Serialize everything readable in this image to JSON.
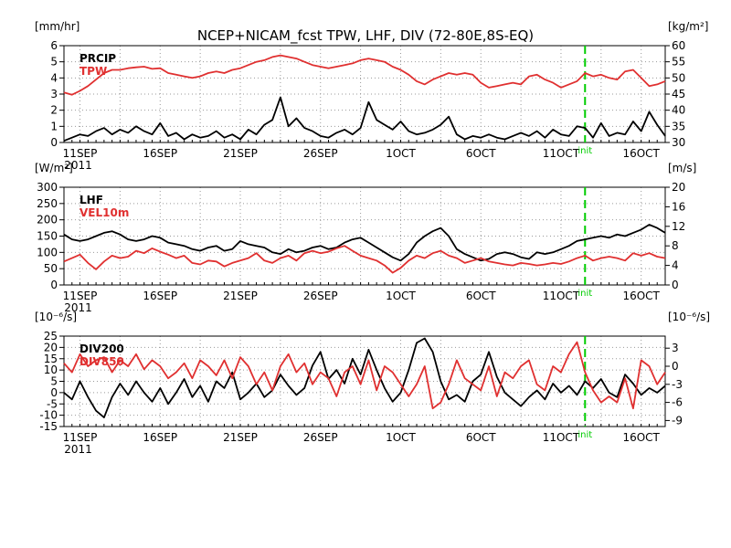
{
  "title": "NCEP+NICAM_fcst TPW, LHF, DIV (72-80E,8S-EQ)",
  "init_label": "init",
  "year_label": "2011",
  "date_labels": [
    "11SEP",
    "16SEP",
    "21SEP",
    "26SEP",
    "1OCT",
    "6OCT",
    "11OCT",
    "16OCT"
  ],
  "colors": {
    "black_series": "#000000",
    "red_series": "#e03030",
    "init_line": "#00cc00",
    "grid": "#999999"
  },
  "chart_data": [
    {
      "type": "line",
      "name": "panel1",
      "left_unit": "[mm/hr]",
      "right_unit": "[kg/m²]",
      "left_ticks": [
        "0",
        "1",
        "2",
        "3",
        "4",
        "5",
        "6"
      ],
      "right_ticks": [
        "30",
        "35",
        "40",
        "45",
        "50",
        "55",
        "60"
      ],
      "ylim_left": [
        0,
        6
      ],
      "ylim_right": [
        30,
        60
      ],
      "grid": true,
      "series": [
        {
          "name": "PRCIP",
          "axis": "left",
          "color": "#000000",
          "x": [
            0,
            1,
            2,
            3,
            4,
            5,
            6,
            7,
            8,
            9,
            10,
            11,
            12,
            13,
            14,
            15,
            16,
            17,
            18,
            19,
            20,
            21,
            22,
            23,
            24,
            25,
            26,
            27,
            28,
            29,
            30,
            31,
            32,
            33,
            34,
            35,
            36,
            37,
            38,
            39,
            40,
            41,
            42,
            43,
            44,
            45,
            46,
            47,
            48,
            49,
            50,
            51,
            52,
            53,
            54,
            55,
            56,
            57,
            58,
            59,
            60,
            61,
            62,
            63,
            64,
            65,
            66,
            67,
            68,
            69,
            70,
            71,
            72,
            73,
            74,
            75
          ],
          "y": [
            0.1,
            0.3,
            0.5,
            0.4,
            0.7,
            0.9,
            0.5,
            0.8,
            0.6,
            1.0,
            0.7,
            0.5,
            1.2,
            0.4,
            0.6,
            0.2,
            0.5,
            0.3,
            0.4,
            0.7,
            0.3,
            0.5,
            0.2,
            0.8,
            0.5,
            1.1,
            1.4,
            2.8,
            1.0,
            1.5,
            0.9,
            0.7,
            0.4,
            0.3,
            0.6,
            0.8,
            0.5,
            0.9,
            2.5,
            1.4,
            1.1,
            0.8,
            1.3,
            0.7,
            0.5,
            0.6,
            0.8,
            1.1,
            1.6,
            0.5,
            0.2,
            0.4,
            0.3,
            0.5,
            0.3,
            0.2,
            0.4,
            0.6,
            0.4,
            0.7,
            0.3,
            0.8,
            0.5,
            0.4,
            1.0,
            0.9,
            0.3,
            1.2,
            0.4,
            0.6,
            0.5,
            1.3,
            0.7,
            1.9,
            1.1,
            0.4
          ]
        },
        {
          "name": "TPW",
          "axis": "right",
          "color": "#e03030",
          "x": [
            0,
            1,
            2,
            3,
            4,
            5,
            6,
            7,
            8,
            9,
            10,
            11,
            12,
            13,
            14,
            15,
            16,
            17,
            18,
            19,
            20,
            21,
            22,
            23,
            24,
            25,
            26,
            27,
            28,
            29,
            30,
            31,
            32,
            33,
            34,
            35,
            36,
            37,
            38,
            39,
            40,
            41,
            42,
            43,
            44,
            45,
            46,
            47,
            48,
            49,
            50,
            51,
            52,
            53,
            54,
            55,
            56,
            57,
            58,
            59,
            60,
            61,
            62,
            63,
            64,
            65,
            66,
            67,
            68,
            69,
            70,
            71,
            72,
            73,
            74,
            75
          ],
          "y": [
            45.5,
            44.8,
            46.0,
            47.5,
            49.5,
            51.5,
            52.5,
            52.5,
            53.0,
            53.3,
            53.5,
            52.8,
            53.0,
            51.5,
            51.0,
            50.5,
            50.0,
            50.5,
            51.5,
            52.0,
            51.5,
            52.5,
            53.0,
            54.0,
            55.0,
            55.5,
            56.5,
            57.0,
            56.5,
            56.0,
            55.0,
            54.0,
            53.5,
            53.0,
            53.5,
            54.0,
            54.5,
            55.5,
            56.0,
            55.5,
            55.0,
            53.5,
            52.5,
            51.0,
            49.0,
            48.0,
            49.5,
            50.5,
            51.5,
            51.0,
            51.5,
            51.0,
            48.5,
            47.0,
            47.5,
            48.0,
            48.5,
            48.0,
            50.5,
            51.0,
            49.5,
            48.5,
            47.0,
            48.0,
            49.0,
            51.5,
            50.5,
            51.0,
            50.0,
            49.5,
            52.0,
            52.5,
            50.0,
            47.5,
            48.0,
            49.0
          ]
        }
      ]
    },
    {
      "type": "line",
      "name": "panel2",
      "left_unit": "[W/m²]",
      "right_unit": "[m/s]",
      "left_ticks": [
        "0",
        "50",
        "100",
        "150",
        "200",
        "250",
        "300"
      ],
      "right_ticks": [
        "0",
        "4",
        "8",
        "12",
        "16",
        "20"
      ],
      "ylim_left": [
        0,
        300
      ],
      "ylim_right": [
        0,
        20
      ],
      "grid": true,
      "series": [
        {
          "name": "LHF",
          "axis": "left",
          "color": "#000000",
          "x": [
            0,
            1,
            2,
            3,
            4,
            5,
            6,
            7,
            8,
            9,
            10,
            11,
            12,
            13,
            14,
            15,
            16,
            17,
            18,
            19,
            20,
            21,
            22,
            23,
            24,
            25,
            26,
            27,
            28,
            29,
            30,
            31,
            32,
            33,
            34,
            35,
            36,
            37,
            38,
            39,
            40,
            41,
            42,
            43,
            44,
            45,
            46,
            47,
            48,
            49,
            50,
            51,
            52,
            53,
            54,
            55,
            56,
            57,
            58,
            59,
            60,
            61,
            62,
            63,
            64,
            65,
            66,
            67,
            68,
            69,
            70,
            71,
            72,
            73,
            74,
            75
          ],
          "y": [
            155,
            140,
            135,
            140,
            150,
            160,
            165,
            155,
            140,
            135,
            140,
            150,
            145,
            130,
            125,
            120,
            110,
            105,
            115,
            120,
            105,
            110,
            135,
            125,
            120,
            115,
            100,
            95,
            110,
            100,
            105,
            115,
            120,
            110,
            115,
            130,
            140,
            145,
            130,
            115,
            100,
            85,
            75,
            95,
            130,
            150,
            165,
            175,
            150,
            110,
            95,
            85,
            75,
            80,
            95,
            100,
            95,
            85,
            80,
            100,
            95,
            100,
            110,
            120,
            135,
            140,
            145,
            150,
            145,
            155,
            150,
            160,
            170,
            185,
            175,
            160
          ]
        },
        {
          "name": "VEL10m",
          "axis": "right",
          "color": "#e03030",
          "x": [
            0,
            1,
            2,
            3,
            4,
            5,
            6,
            7,
            8,
            9,
            10,
            11,
            12,
            13,
            14,
            15,
            16,
            17,
            18,
            19,
            20,
            21,
            22,
            23,
            24,
            25,
            26,
            27,
            28,
            29,
            30,
            31,
            32,
            33,
            34,
            35,
            36,
            37,
            38,
            39,
            40,
            41,
            42,
            43,
            44,
            45,
            46,
            47,
            48,
            49,
            50,
            51,
            52,
            53,
            54,
            55,
            56,
            57,
            58,
            59,
            60,
            61,
            62,
            63,
            64,
            65,
            66,
            67,
            68,
            69,
            70,
            71,
            72,
            73,
            74,
            75
          ],
          "y": [
            4.8,
            5.5,
            6.2,
            4.5,
            3.2,
            4.8,
            6.0,
            5.5,
            5.8,
            7.0,
            6.5,
            7.5,
            6.8,
            6.2,
            5.5,
            6.0,
            4.5,
            4.2,
            5.0,
            4.8,
            3.8,
            4.5,
            5.0,
            5.5,
            6.5,
            5.0,
            4.5,
            5.5,
            6.0,
            5.0,
            6.5,
            7.0,
            6.5,
            6.8,
            7.5,
            8.0,
            7.0,
            6.0,
            5.5,
            5.0,
            4.0,
            2.5,
            3.5,
            5.0,
            6.0,
            5.5,
            6.5,
            7.0,
            6.0,
            5.5,
            4.5,
            5.0,
            5.5,
            4.8,
            4.5,
            4.2,
            4.0,
            4.5,
            4.3,
            4.0,
            4.2,
            4.5,
            4.3,
            4.8,
            5.5,
            6.0,
            5.0,
            5.5,
            5.8,
            5.5,
            5.0,
            6.5,
            6.0,
            6.5,
            5.8,
            5.5
          ]
        }
      ]
    },
    {
      "type": "line",
      "name": "panel3",
      "left_unit": "[10⁻⁶/s]",
      "right_unit": "[10⁻⁶/s]",
      "left_ticks": [
        "-15",
        "-10",
        "-5",
        "0",
        "5",
        "10",
        "15",
        "20",
        "25"
      ],
      "right_ticks": [
        "-9",
        "-6",
        "-3",
        "0",
        "3"
      ],
      "ylim_left": [
        -15,
        25
      ],
      "ylim_right": [
        -10,
        5
      ],
      "grid": true,
      "series": [
        {
          "name": "DIV200",
          "axis": "left",
          "color": "#000000",
          "x": [
            0,
            1,
            2,
            3,
            4,
            5,
            6,
            7,
            8,
            9,
            10,
            11,
            12,
            13,
            14,
            15,
            16,
            17,
            18,
            19,
            20,
            21,
            22,
            23,
            24,
            25,
            26,
            27,
            28,
            29,
            30,
            31,
            32,
            33,
            34,
            35,
            36,
            37,
            38,
            39,
            40,
            41,
            42,
            43,
            44,
            45,
            46,
            47,
            48,
            49,
            50,
            51,
            52,
            53,
            54,
            55,
            56,
            57,
            58,
            59,
            60,
            61,
            62,
            63,
            64,
            65,
            66,
            67,
            68,
            69,
            70,
            71,
            72,
            73,
            74,
            75
          ],
          "y": [
            0,
            -3,
            5,
            -2,
            -8,
            -11,
            -2,
            4,
            -1,
            5,
            0,
            -4,
            2,
            -5,
            0,
            6,
            -2,
            3,
            -4,
            5,
            2,
            9,
            -3,
            0,
            4,
            -2,
            1,
            8,
            3,
            -1,
            2,
            12,
            18,
            6,
            10,
            4,
            15,
            8,
            19,
            10,
            2,
            -4,
            0,
            10,
            22,
            24,
            18,
            5,
            -3,
            -1,
            -4,
            5,
            8,
            18,
            7,
            0,
            -3,
            -6,
            -2,
            1,
            -3,
            4,
            0,
            3,
            -1,
            5,
            2,
            6,
            0,
            -2,
            8,
            4,
            -1,
            2,
            0,
            3
          ]
        },
        {
          "name": "DIV850",
          "axis": "right",
          "color": "#e03030",
          "x": [
            0,
            1,
            2,
            3,
            4,
            5,
            6,
            7,
            8,
            9,
            10,
            11,
            12,
            13,
            14,
            15,
            16,
            17,
            18,
            19,
            20,
            21,
            22,
            23,
            24,
            25,
            26,
            27,
            28,
            29,
            30,
            31,
            32,
            33,
            34,
            35,
            36,
            37,
            38,
            39,
            40,
            41,
            42,
            43,
            44,
            45,
            46,
            47,
            48,
            49,
            50,
            51,
            52,
            53,
            54,
            55,
            56,
            57,
            58,
            59,
            60,
            61,
            62,
            63,
            64,
            65,
            66,
            67,
            68,
            69,
            70,
            71,
            72,
            73,
            74,
            75
          ],
          "y": [
            0.5,
            -1,
            2,
            0,
            1,
            1.5,
            -1,
            1,
            0,
            2,
            -0.5,
            1,
            0,
            -2,
            -1,
            0.5,
            -2,
            1,
            0,
            -1.5,
            1,
            -2,
            1.5,
            0,
            -3,
            -1,
            -4,
            0,
            2,
            -1,
            0.5,
            -3,
            -1,
            -2,
            -5,
            -1,
            0,
            -3,
            1,
            -4,
            0,
            -1,
            -3,
            -5,
            -3,
            0,
            -7,
            -6,
            -3,
            1,
            -2,
            -3,
            -4,
            0,
            -5,
            -1,
            -2,
            0,
            1,
            -3,
            -4,
            0,
            -1,
            2,
            4,
            -1,
            -4,
            -6,
            -5,
            -6,
            -2,
            -7,
            1,
            0,
            -3,
            -1
          ]
        }
      ]
    }
  ]
}
